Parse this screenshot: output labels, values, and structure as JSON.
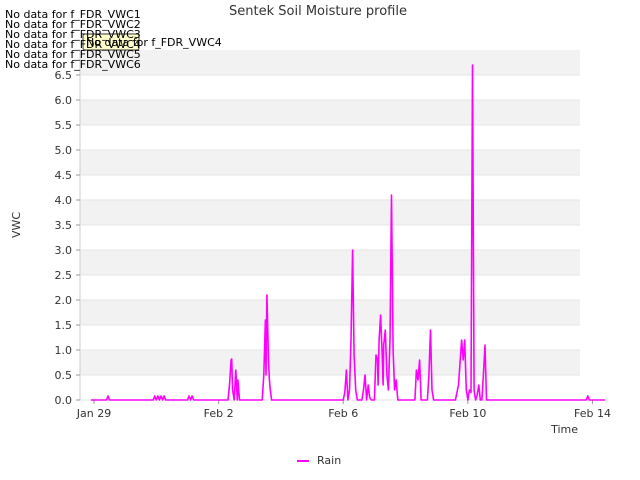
{
  "chart_data": {
    "type": "line",
    "title": "Sentek Soil Moisture profile",
    "xlabel": "Time",
    "ylabel": "VWC",
    "xlim": [
      28.55,
      44.6
    ],
    "ylim": [
      0,
      7.0
    ],
    "x_ticks": [
      {
        "value": 29,
        "label": "Jan 29"
      },
      {
        "value": 33,
        "label": "Feb 2"
      },
      {
        "value": 37,
        "label": "Feb 6"
      },
      {
        "value": 41,
        "label": "Feb 10"
      },
      {
        "value": 45,
        "label": "Feb 14"
      }
    ],
    "y_ticks": [
      {
        "value": 0,
        "label": "0.0"
      },
      {
        "value": 0.5,
        "label": "0.5"
      },
      {
        "value": 1.0,
        "label": "1.0"
      },
      {
        "value": 1.5,
        "label": "1.5"
      },
      {
        "value": 2.0,
        "label": "2.0"
      },
      {
        "value": 2.5,
        "label": "2.5"
      },
      {
        "value": 3.0,
        "label": "3.0"
      },
      {
        "value": 3.5,
        "label": "3.5"
      },
      {
        "value": 4.0,
        "label": "4.0"
      },
      {
        "value": 4.5,
        "label": "4.5"
      },
      {
        "value": 5.0,
        "label": "5.0"
      },
      {
        "value": 5.5,
        "label": "5.5"
      },
      {
        "value": 6.0,
        "label": "6.0"
      },
      {
        "value": 6.5,
        "label": "6.5"
      }
    ],
    "band_color": "#f2f2f2",
    "legend_position": "bottom-center",
    "series": [
      {
        "name": "Rain",
        "color": "#ff00ff",
        "x": [
          28.9,
          29.4,
          29.45,
          29.5,
          29.55,
          30.0,
          30.9,
          30.95,
          31.0,
          31.05,
          31.1,
          31.15,
          31.2,
          31.25,
          31.3,
          32.0,
          32.05,
          32.1,
          32.15,
          32.2,
          33.3,
          33.35,
          33.4,
          33.42,
          33.45,
          33.5,
          33.55,
          33.6,
          33.62,
          33.67,
          33.72,
          34.4,
          34.45,
          34.5,
          34.52,
          34.55,
          34.6,
          34.63,
          34.66,
          34.7,
          34.8,
          36.9,
          37.0,
          37.05,
          37.1,
          37.15,
          37.2,
          37.25,
          37.3,
          37.35,
          37.4,
          37.45,
          37.6,
          37.65,
          37.7,
          37.75,
          37.8,
          37.85,
          37.9,
          38.0,
          38.05,
          38.1,
          38.12,
          38.15,
          38.2,
          38.25,
          38.28,
          38.3,
          38.35,
          38.4,
          38.45,
          38.5,
          38.55,
          38.6,
          38.65,
          38.7,
          38.75,
          38.8,
          38.85,
          39.3,
          39.35,
          39.4,
          39.45,
          39.5,
          39.7,
          39.75,
          39.8,
          39.85,
          39.9,
          40.6,
          40.7,
          40.8,
          40.85,
          40.9,
          40.95,
          41.0,
          41.05,
          41.1,
          41.15,
          41.2,
          41.25,
          41.3,
          41.35,
          41.4,
          41.45,
          41.5,
          41.55,
          41.6,
          41.65,
          41.7,
          44.6,
          44.8,
          44.85,
          44.9,
          45.4
        ],
        "values": [
          0,
          0,
          0.08,
          0,
          0,
          0,
          0,
          0.08,
          0,
          0.08,
          0,
          0.08,
          0,
          0.08,
          0,
          0,
          0.08,
          0,
          0.08,
          0,
          0,
          0.3,
          0.8,
          0.82,
          0.2,
          0,
          0.6,
          0,
          0.4,
          0,
          0,
          0,
          0.5,
          1.6,
          0.5,
          2.1,
          0.8,
          0.4,
          0.2,
          0,
          0,
          0,
          0,
          0.15,
          0.6,
          0,
          0.2,
          1.2,
          3.0,
          0.9,
          0.2,
          0,
          0,
          0.2,
          0.5,
          0,
          0.3,
          0.05,
          0,
          0,
          0.9,
          0.8,
          0.3,
          1.2,
          1.7,
          0.9,
          0.3,
          1.1,
          1.4,
          0.5,
          0.2,
          1.2,
          4.1,
          1.0,
          0.2,
          0.4,
          0,
          0,
          0,
          0,
          0.6,
          0.4,
          0.8,
          0,
          0,
          0.5,
          1.4,
          0.2,
          0,
          0,
          0.3,
          1.2,
          0.8,
          1.2,
          0.2,
          0,
          0.2,
          0.15,
          6.7,
          0.2,
          0,
          0.1,
          0.3,
          0,
          0,
          0.5,
          1.1,
          0,
          0,
          0,
          0,
          0,
          0.08,
          0,
          0
        ]
      }
    ],
    "no_data_messages": [
      "No data for f_FDR_VWC1",
      "No data for f_FDR_VWC2",
      "No data for f_FDR_VWC3",
      "No data for f_FDR_VWC4",
      "No data for f_FDR_VWC5",
      "No data for f_FDR_VWC6"
    ],
    "tooltip_label": "No data for f_FDR_VWC4"
  }
}
